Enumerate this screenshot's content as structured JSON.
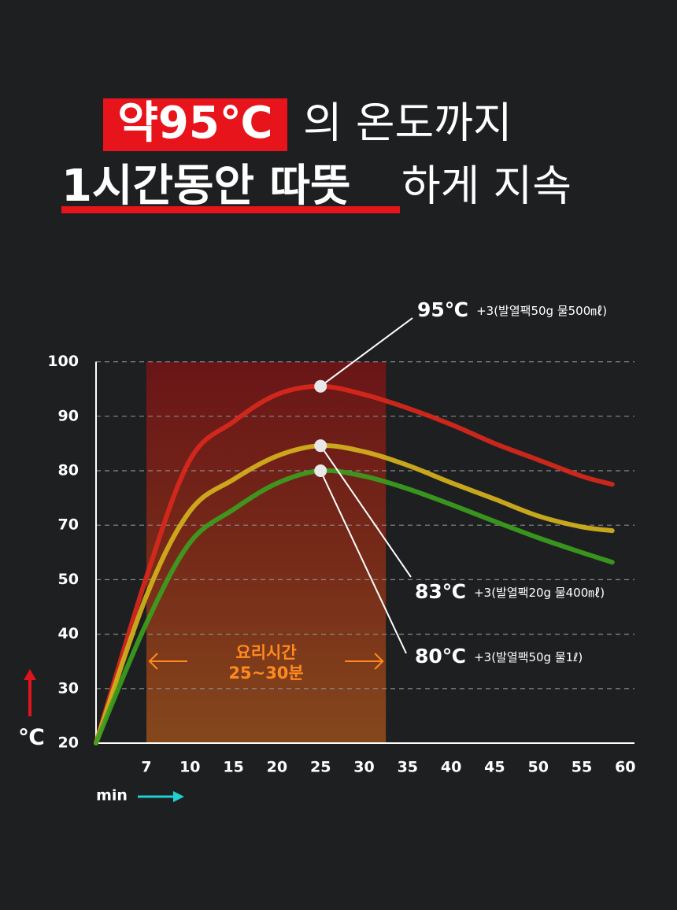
{
  "header": {
    "line1_highlight": "약95℃",
    "line1_rest": "의 온도까지",
    "line2_bold": "1시간동안 따뜻",
    "line2_rest": "하게 지속"
  },
  "chart_data": {
    "type": "line",
    "x": [
      0,
      7,
      10,
      15,
      20,
      25,
      30,
      35,
      40,
      45,
      50,
      55,
      58.5
    ],
    "xlim": [
      0,
      60
    ],
    "xticks": [
      7,
      10,
      15,
      20,
      25,
      30,
      35,
      40,
      45,
      50,
      55,
      60
    ],
    "ylim": [
      20,
      100
    ],
    "yticks": [
      20,
      30,
      40,
      50,
      70,
      80,
      90,
      100
    ],
    "x_label": "min",
    "y_label": "℃",
    "grid": true,
    "highlight_x": [
      7,
      32.5
    ],
    "highlight_label": [
      "요리시간",
      "25~30분"
    ],
    "series": [
      {
        "name": "95℃",
        "note": "+3(발열팩50g 물500㎖)",
        "color": "#d9281c",
        "values": [
          20,
          51,
          82,
          89,
          94,
          95.5,
          94,
          91.5,
          88.5,
          85,
          82,
          79,
          77.5
        ]
      },
      {
        "name": "83℃",
        "note": "+3(발열팩20g 물400㎖)",
        "color": "#d4b21c",
        "values": [
          20,
          47,
          72.6,
          78.4,
          82.7,
          84.6,
          83.5,
          81,
          77.8,
          74.8,
          71.7,
          69.4,
          68
        ]
      },
      {
        "name": "80℃",
        "note": "+3(발열팩50g 물1ℓ)",
        "color": "#3c9e1e",
        "values": [
          20,
          42,
          63.6,
          72.9,
          77.7,
          80,
          79,
          76.7,
          73.8,
          70.7,
          65.4,
          60,
          56.4
        ]
      }
    ]
  }
}
